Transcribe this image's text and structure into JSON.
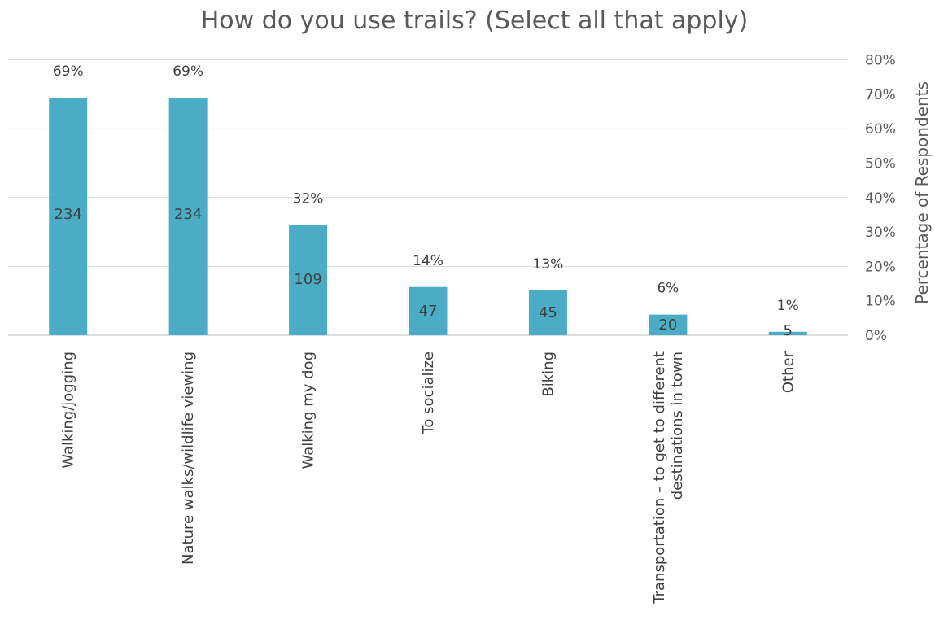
{
  "chart_data": {
    "type": "bar",
    "title": "How do you use trails? (Select all that apply)",
    "xlabel": "",
    "ylabel": "Percentage of Respondents",
    "y_axis_side": "right",
    "ylim": [
      0,
      80
    ],
    "yticks": [
      "0%",
      "10%",
      "20%",
      "30%",
      "40%",
      "50%",
      "60%",
      "70%",
      "80%"
    ],
    "grid": true,
    "bar_color": "#4BACC6",
    "categories": [
      [
        "Walking/jogging"
      ],
      [
        "Nature walks/wildlife viewing"
      ],
      [
        "Walking my dog"
      ],
      [
        "To socialize"
      ],
      [
        "Biking"
      ],
      [
        "Transportation – to get to different",
        "destinations in town"
      ],
      [
        "Other"
      ]
    ],
    "percent_values": [
      69,
      69,
      32,
      14,
      13,
      6,
      1
    ],
    "count_values": [
      234,
      234,
      109,
      47,
      45,
      20,
      5
    ],
    "percent_labels": [
      "69%",
      "69%",
      "32%",
      "14%",
      "13%",
      "6%",
      "1%"
    ],
    "count_labels": [
      "234",
      "234",
      "109",
      "47",
      "45",
      "20",
      "5"
    ]
  }
}
